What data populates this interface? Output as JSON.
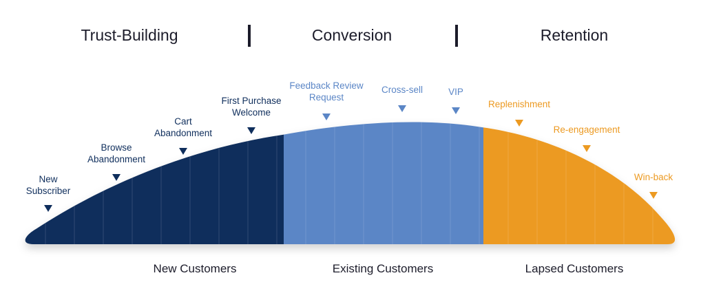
{
  "phases": [
    "Trust-Building",
    "Conversion",
    "Retention"
  ],
  "segments": {
    "new": {
      "label": "New Customers",
      "color": "#0f2e5c"
    },
    "existing": {
      "label": "Existing Customers",
      "color": "#5b86c6"
    },
    "lapsed": {
      "label": "Lapsed Customers",
      "color": "#ec9a22"
    }
  },
  "stages": [
    {
      "label": "New\nSubscriber",
      "group": "new"
    },
    {
      "label": "Browse\nAbandonment",
      "group": "new"
    },
    {
      "label": "Cart\nAbandonment",
      "group": "new"
    },
    {
      "label": "First Purchase\nWelcome",
      "group": "new"
    },
    {
      "label": "Feedback Review\nRequest",
      "group": "existing"
    },
    {
      "label": "Cross-sell",
      "group": "existing"
    },
    {
      "label": "VIP",
      "group": "existing"
    },
    {
      "label": "Replenishment",
      "group": "lapsed"
    },
    {
      "label": "Re-engagement",
      "group": "lapsed"
    },
    {
      "label": "Win-back",
      "group": "lapsed"
    }
  ]
}
